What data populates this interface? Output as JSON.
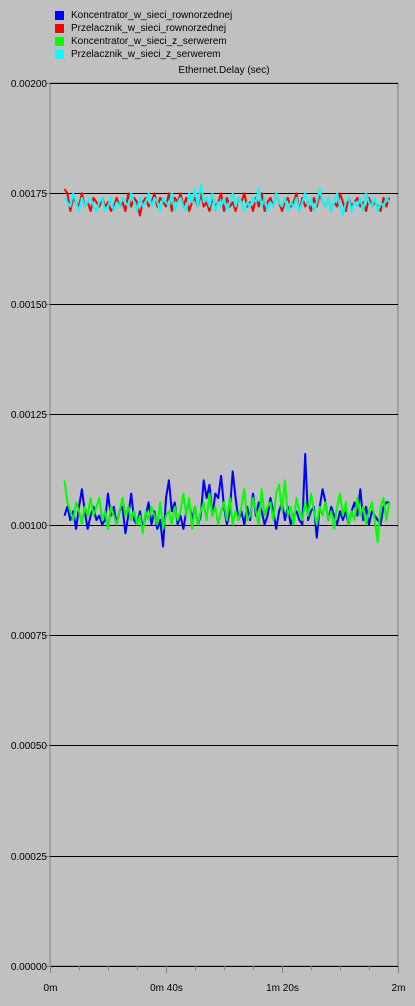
{
  "colors": {
    "background": "#c0c0c0",
    "gridline": "#000000",
    "axis": "#808080"
  },
  "chart_data": {
    "type": "line",
    "title": "Ethernet.Delay (sec)",
    "xlabel": "",
    "ylabel": "",
    "xlim": [
      0,
      120
    ],
    "ylim": [
      0,
      0.002
    ],
    "x_ticks": [
      {
        "value": 0,
        "label": "0m"
      },
      {
        "value": 40,
        "label": "0m 40s"
      },
      {
        "value": 80,
        "label": "1m 20s"
      },
      {
        "value": 120,
        "label": "2m"
      }
    ],
    "y_ticks": [
      {
        "value": 0.002,
        "label": "0.00200"
      },
      {
        "value": 0.00175,
        "label": "0.00175"
      },
      {
        "value": 0.0015,
        "label": "0.00150"
      },
      {
        "value": 0.00125,
        "label": "0.00125"
      },
      {
        "value": 0.001,
        "label": "0.00100"
      },
      {
        "value": 0.00075,
        "label": "0.00075"
      },
      {
        "value": 0.0005,
        "label": "0.00050"
      },
      {
        "value": 0.00025,
        "label": "0.00025"
      },
      {
        "value": 0.0,
        "label": "0.00000"
      }
    ],
    "grid": "horizontal",
    "legend_position": "top-left",
    "series": [
      {
        "name": "Koncentrator_w_sieci_rownorzednej",
        "color": "#0000ff",
        "x": [
          5,
          6,
          7,
          8,
          9,
          10,
          11,
          12,
          13,
          14,
          15,
          16,
          17,
          18,
          19,
          20,
          21,
          22,
          23,
          24,
          25,
          26,
          27,
          28,
          29,
          30,
          31,
          32,
          33,
          34,
          35,
          36,
          37,
          38,
          39,
          40,
          41,
          42,
          43,
          44,
          45,
          46,
          47,
          48,
          49,
          50,
          51,
          52,
          53,
          54,
          55,
          56,
          57,
          58,
          59,
          60,
          61,
          62,
          63,
          64,
          65,
          66,
          67,
          68,
          69,
          70,
          71,
          72,
          73,
          74,
          75,
          76,
          77,
          78,
          79,
          80,
          81,
          82,
          83,
          84,
          85,
          86,
          87,
          88,
          89,
          90,
          91,
          92,
          93,
          94,
          95,
          96,
          97,
          98,
          99,
          100,
          101,
          102,
          103,
          104,
          105,
          106,
          107,
          108,
          109,
          110,
          111,
          112,
          113,
          114,
          115,
          116,
          117
        ],
        "values": [
          0.00102,
          0.00104,
          0.00101,
          0.00103,
          0.00099,
          0.00104,
          0.00108,
          0.00103,
          0.00099,
          0.00102,
          0.00104,
          0.00101,
          0.00102,
          0.001,
          0.00101,
          0.00107,
          0.00102,
          0.00104,
          0.001,
          0.00103,
          0.00104,
          0.00098,
          0.00102,
          0.00107,
          0.00101,
          0.001,
          0.00103,
          0.00099,
          0.00102,
          0.00105,
          0.001,
          0.00103,
          0.00099,
          0.00101,
          0.00095,
          0.00106,
          0.0011,
          0.00103,
          0.00105,
          0.001,
          0.00102,
          0.00099,
          0.00103,
          0.00105,
          0.00101,
          0.00104,
          0.001,
          0.00102,
          0.0011,
          0.00106,
          0.00109,
          0.00102,
          0.00107,
          0.00106,
          0.00111,
          0.00104,
          0.001,
          0.00103,
          0.00112,
          0.00106,
          0.00101,
          0.00103,
          0.001,
          0.00104,
          0.00101,
          0.00107,
          0.00102,
          0.00105,
          0.00103,
          0.001,
          0.00102,
          0.00106,
          0.00103,
          0.00099,
          0.00103,
          0.00105,
          0.00101,
          0.00104,
          0.001,
          0.00102,
          0.00103,
          0.00101,
          0.001,
          0.00116,
          0.00101,
          0.00103,
          0.00104,
          0.00097,
          0.00104,
          0.00108,
          0.00105,
          0.00101,
          0.00104,
          0.00102,
          0.001,
          0.00103,
          0.00101,
          0.00103,
          0.001,
          0.00103,
          0.00105,
          0.00102,
          0.00108,
          0.00101,
          0.00104,
          0.001,
          0.00103,
          0.00102,
          0.00101,
          0.001,
          0.00104,
          0.00105,
          0.00105
        ]
      },
      {
        "name": "Przelacznik_w_sieci_rownorzednej",
        "color": "#ff0000",
        "x": [
          5,
          6,
          7,
          8,
          9,
          10,
          11,
          12,
          13,
          14,
          15,
          16,
          17,
          18,
          19,
          20,
          21,
          22,
          23,
          24,
          25,
          26,
          27,
          28,
          29,
          30,
          31,
          32,
          33,
          34,
          35,
          36,
          37,
          38,
          39,
          40,
          41,
          42,
          43,
          44,
          45,
          46,
          47,
          48,
          49,
          50,
          51,
          52,
          53,
          54,
          55,
          56,
          57,
          58,
          59,
          60,
          61,
          62,
          63,
          64,
          65,
          66,
          67,
          68,
          69,
          70,
          71,
          72,
          73,
          74,
          75,
          76,
          77,
          78,
          79,
          80,
          81,
          82,
          83,
          84,
          85,
          86,
          87,
          88,
          89,
          90,
          91,
          92,
          93,
          94,
          95,
          96,
          97,
          98,
          99,
          100,
          101,
          102,
          103,
          104,
          105,
          106,
          107,
          108,
          109,
          110,
          111,
          112,
          113,
          114,
          115,
          116,
          117
        ],
        "values": [
          0.00176,
          0.00175,
          0.00171,
          0.00174,
          0.00173,
          0.00172,
          0.00175,
          0.00172,
          0.00173,
          0.00171,
          0.00174,
          0.00173,
          0.00172,
          0.00174,
          0.00172,
          0.00173,
          0.00171,
          0.00172,
          0.00174,
          0.00172,
          0.00173,
          0.00171,
          0.00175,
          0.00172,
          0.00174,
          0.00173,
          0.0017,
          0.00173,
          0.00174,
          0.00172,
          0.00173,
          0.00175,
          0.00172,
          0.00174,
          0.00173,
          0.00172,
          0.00175,
          0.00171,
          0.00174,
          0.00173,
          0.00175,
          0.00172,
          0.00174,
          0.00171,
          0.00173,
          0.00174,
          0.00172,
          0.00175,
          0.00172,
          0.00173,
          0.00171,
          0.00174,
          0.00172,
          0.00173,
          0.00175,
          0.00171,
          0.00174,
          0.00172,
          0.00173,
          0.00171,
          0.00174,
          0.00173,
          0.00175,
          0.00172,
          0.00173,
          0.00171,
          0.00174,
          0.00172,
          0.00175,
          0.00171,
          0.00173,
          0.00174,
          0.00172,
          0.00175,
          0.00173,
          0.00171,
          0.00173,
          0.00174,
          0.00172,
          0.00173,
          0.00175,
          0.00171,
          0.00174,
          0.00172,
          0.00173,
          0.00171,
          0.00174,
          0.00172,
          0.00175,
          0.00173,
          0.00172,
          0.00174,
          0.00171,
          0.00173,
          0.00172,
          0.00175,
          0.00173,
          0.00171,
          0.00174,
          0.00172,
          0.00173,
          0.00174,
          0.00172,
          0.00173,
          0.00171,
          0.00174,
          0.00172,
          0.00173,
          0.00172,
          0.00171,
          0.00174,
          0.00172,
          0.00174
        ]
      },
      {
        "name": "Koncentrator_w_sieci_z_serwerem",
        "color": "#00ff00",
        "x": [
          5,
          6,
          7,
          8,
          9,
          10,
          11,
          12,
          13,
          14,
          15,
          16,
          17,
          18,
          19,
          20,
          21,
          22,
          23,
          24,
          25,
          26,
          27,
          28,
          29,
          30,
          31,
          32,
          33,
          34,
          35,
          36,
          37,
          38,
          39,
          40,
          41,
          42,
          43,
          44,
          45,
          46,
          47,
          48,
          49,
          50,
          51,
          52,
          53,
          54,
          55,
          56,
          57,
          58,
          59,
          60,
          61,
          62,
          63,
          64,
          65,
          66,
          67,
          68,
          69,
          70,
          71,
          72,
          73,
          74,
          75,
          76,
          77,
          78,
          79,
          80,
          81,
          82,
          83,
          84,
          85,
          86,
          87,
          88,
          89,
          90,
          91,
          92,
          93,
          94,
          95,
          96,
          97,
          98,
          99,
          100,
          101,
          102,
          103,
          104,
          105,
          106,
          107,
          108,
          109,
          110,
          111,
          112,
          113,
          114,
          115,
          116,
          117
        ],
        "values": [
          0.0011,
          0.00105,
          0.00103,
          0.00101,
          0.00105,
          0.00103,
          0.001,
          0.00104,
          0.00102,
          0.00106,
          0.00102,
          0.00104,
          0.00106,
          0.00101,
          0.00103,
          0.00099,
          0.00104,
          0.00102,
          0.001,
          0.00103,
          0.00106,
          0.00102,
          0.00104,
          0.00101,
          0.00103,
          0.001,
          0.00102,
          0.00098,
          0.00103,
          0.00101,
          0.00104,
          0.00102,
          0.001,
          0.00105,
          0.00099,
          0.00102,
          0.00103,
          0.001,
          0.00104,
          0.00101,
          0.00103,
          0.00107,
          0.00102,
          0.00106,
          0.00099,
          0.00104,
          0.001,
          0.00103,
          0.00105,
          0.00101,
          0.00107,
          0.00102,
          0.00104,
          0.001,
          0.00103,
          0.00105,
          0.00101,
          0.00106,
          0.001,
          0.00103,
          0.00101,
          0.00104,
          0.00108,
          0.00101,
          0.00102,
          0.00106,
          0.00103,
          0.001,
          0.00108,
          0.00102,
          0.00104,
          0.00105,
          0.00101,
          0.00107,
          0.00109,
          0.00103,
          0.0011,
          0.00102,
          0.00104,
          0.001,
          0.00106,
          0.00103,
          0.00101,
          0.00105,
          0.00102,
          0.00107,
          0.00103,
          0.001,
          0.00104,
          0.00102,
          0.00105,
          0.00101,
          0.00103,
          0.00099,
          0.00104,
          0.00107,
          0.00102,
          0.00105,
          0.001,
          0.00103,
          0.00101,
          0.00106,
          0.00102,
          0.00104,
          0.001,
          0.00103,
          0.00105,
          0.00101,
          0.00096,
          0.00104,
          0.00106,
          0.00101,
          0.00105
        ]
      },
      {
        "name": "Przelacznik_w_sieci_z_serwerem",
        "color": "#00ffff",
        "x": [
          5,
          6,
          7,
          8,
          9,
          10,
          11,
          12,
          13,
          14,
          15,
          16,
          17,
          18,
          19,
          20,
          21,
          22,
          23,
          24,
          25,
          26,
          27,
          28,
          29,
          30,
          31,
          32,
          33,
          34,
          35,
          36,
          37,
          38,
          39,
          40,
          41,
          42,
          43,
          44,
          45,
          46,
          47,
          48,
          49,
          50,
          51,
          52,
          53,
          54,
          55,
          56,
          57,
          58,
          59,
          60,
          61,
          62,
          63,
          64,
          65,
          66,
          67,
          68,
          69,
          70,
          71,
          72,
          73,
          74,
          75,
          76,
          77,
          78,
          79,
          80,
          81,
          82,
          83,
          84,
          85,
          86,
          87,
          88,
          89,
          90,
          91,
          92,
          93,
          94,
          95,
          96,
          97,
          98,
          99,
          100,
          101,
          102,
          103,
          104,
          105,
          106,
          107,
          108,
          109,
          110,
          111,
          112,
          113,
          114,
          115,
          116,
          117
        ],
        "values": [
          0.00174,
          0.00173,
          0.00172,
          0.00175,
          0.00173,
          0.00171,
          0.00174,
          0.00172,
          0.00173,
          0.00174,
          0.00172,
          0.00171,
          0.00173,
          0.00174,
          0.00171,
          0.00172,
          0.00174,
          0.00171,
          0.00173,
          0.00172,
          0.00174,
          0.00173,
          0.00172,
          0.00175,
          0.00173,
          0.00171,
          0.00174,
          0.00172,
          0.00173,
          0.00175,
          0.00172,
          0.00174,
          0.00173,
          0.00171,
          0.00174,
          0.00173,
          0.00172,
          0.00175,
          0.00171,
          0.00173,
          0.00174,
          0.00172,
          0.00171,
          0.00175,
          0.00173,
          0.00176,
          0.00172,
          0.00177,
          0.00173,
          0.00174,
          0.00172,
          0.00175,
          0.00171,
          0.00173,
          0.00172,
          0.00174,
          0.00171,
          0.00173,
          0.00175,
          0.00172,
          0.00174,
          0.00173,
          0.00171,
          0.00173,
          0.00172,
          0.00174,
          0.00173,
          0.00176,
          0.00172,
          0.00174,
          0.00171,
          0.00173,
          0.00172,
          0.00175,
          0.00173,
          0.00172,
          0.00174,
          0.00171,
          0.00173,
          0.00172,
          0.00174,
          0.00171,
          0.00173,
          0.00175,
          0.00172,
          0.00174,
          0.00171,
          0.00173,
          0.00176,
          0.00173,
          0.00172,
          0.00174,
          0.00171,
          0.00173,
          0.00175,
          0.00172,
          0.0017,
          0.00173,
          0.00174,
          0.00171,
          0.00173,
          0.00172,
          0.00174,
          0.00171,
          0.00175,
          0.00173,
          0.00172,
          0.00174,
          0.00171,
          0.00173,
          0.00172,
          0.00174,
          0.00173
        ]
      }
    ]
  }
}
